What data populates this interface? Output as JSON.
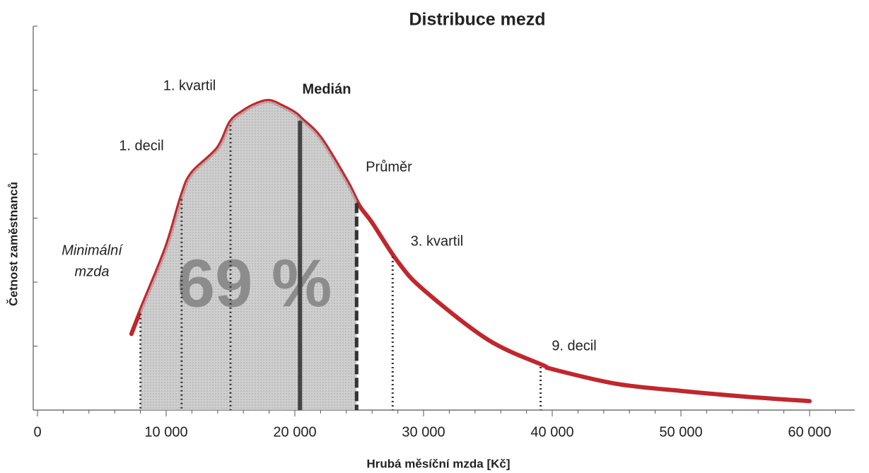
{
  "chart_data": {
    "type": "line",
    "title": "Distribuce mezd",
    "xlabel": "Hrubá měsíční mzda [Kč]",
    "ylabel": "Četnost zaměstnanců",
    "x": [
      7300,
      8000,
      10000,
      11200,
      12000,
      14000,
      15000,
      16000,
      17000,
      18000,
      19000,
      20000,
      20500,
      22000,
      24000,
      25000,
      26000,
      28000,
      30000,
      35000,
      39300,
      40000,
      45000,
      50000,
      55000,
      60000
    ],
    "values": [
      1.19,
      1.55,
      2.54,
      3.34,
      3.7,
      4.09,
      4.5,
      4.67,
      4.78,
      4.83,
      4.75,
      4.64,
      4.55,
      4.25,
      3.59,
      3.2,
      2.93,
      2.32,
      1.88,
      1.1,
      0.7,
      0.64,
      0.41,
      0.3,
      0.21,
      0.14
    ],
    "color": "#c0272d",
    "xlim": [
      0,
      63500
    ],
    "ylim": [
      0,
      6
    ],
    "xticks": [
      0,
      {
        "value": 10000,
        "label": "10 000"
      },
      {
        "value": 20000,
        "label": "20 000"
      },
      {
        "value": 30000,
        "label": "30 000"
      },
      {
        "value": 40000,
        "label": "40 000"
      },
      {
        "value": 50000,
        "label": "50 000"
      },
      {
        "value": 60000,
        "label": "60 000"
      }
    ],
    "yticks": [
      0,
      1,
      2,
      3,
      4,
      5,
      6
    ],
    "markers": [
      {
        "label": [
          "Minimální",
          "mzda"
        ],
        "x": 8000,
        "style": "dotted"
      },
      {
        "label": [
          "1. decil"
        ],
        "x": 11200,
        "style": "dotted"
      },
      {
        "label": [
          "1. kvartil"
        ],
        "x": 15000,
        "style": "dotted"
      },
      {
        "label": [
          "Medián"
        ],
        "x": 20400,
        "style": "solid"
      },
      {
        "label": [
          "Průměr"
        ],
        "x": 24800,
        "style": "dashed"
      },
      {
        "label": [
          "3. kvartil"
        ],
        "x": 27600,
        "style": "dotted"
      },
      {
        "label": [
          "9. decil"
        ],
        "x": 39100,
        "style": "dotted"
      }
    ],
    "annotation": "69 %"
  }
}
